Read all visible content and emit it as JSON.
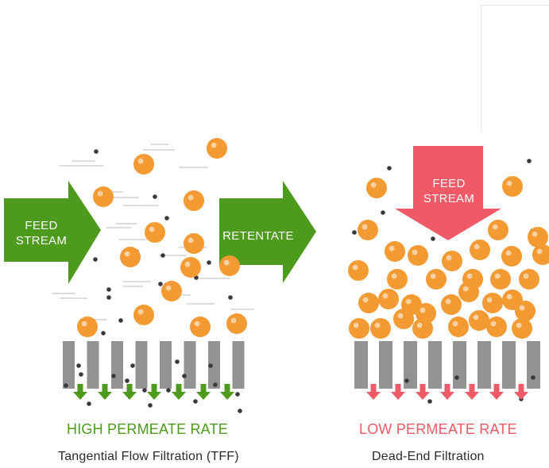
{
  "colors": {
    "green": "#4d9a1c",
    "red": "#f05a66",
    "particle_orange": "#f39a33",
    "particle_dark": "#3a3a3a",
    "membrane_gray": "#939393",
    "caption": "#2b2b2b"
  },
  "tff": {
    "feed_label": "FEED\nSTREAM",
    "retentate_label": "RETENTATE",
    "rate_label": "HIGH PERMEATE RATE",
    "caption": "Tangential Flow Filtration (TFF)"
  },
  "dead_end": {
    "feed_label": "FEED\nSTREAM",
    "rate_label": "LOW PERMEATE RATE",
    "caption": "Dead-End Filtration"
  }
}
